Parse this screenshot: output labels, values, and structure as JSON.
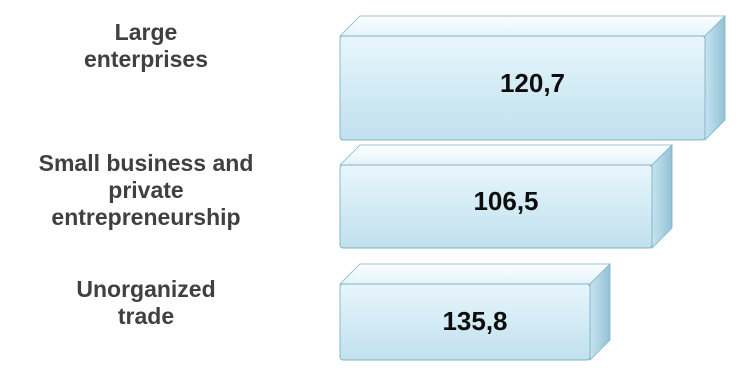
{
  "chart_data": {
    "type": "bar",
    "orientation": "horizontal",
    "categories": [
      [
        "Large",
        "enterprises"
      ],
      [
        "Small business and",
        "private",
        "entrepreneurship"
      ],
      [
        "Unorganized",
        "trade"
      ]
    ],
    "values": [
      "120,7",
      "106,5",
      "135,8"
    ],
    "title": "",
    "xlabel": "",
    "ylabel": "",
    "grid": false,
    "legend": "none",
    "colors": {
      "bar_face": "#d5ecf6",
      "bar_top": "#eef8fc",
      "bar_side": "#a8cfe0",
      "bar_edge": "#7fb3c8"
    }
  }
}
